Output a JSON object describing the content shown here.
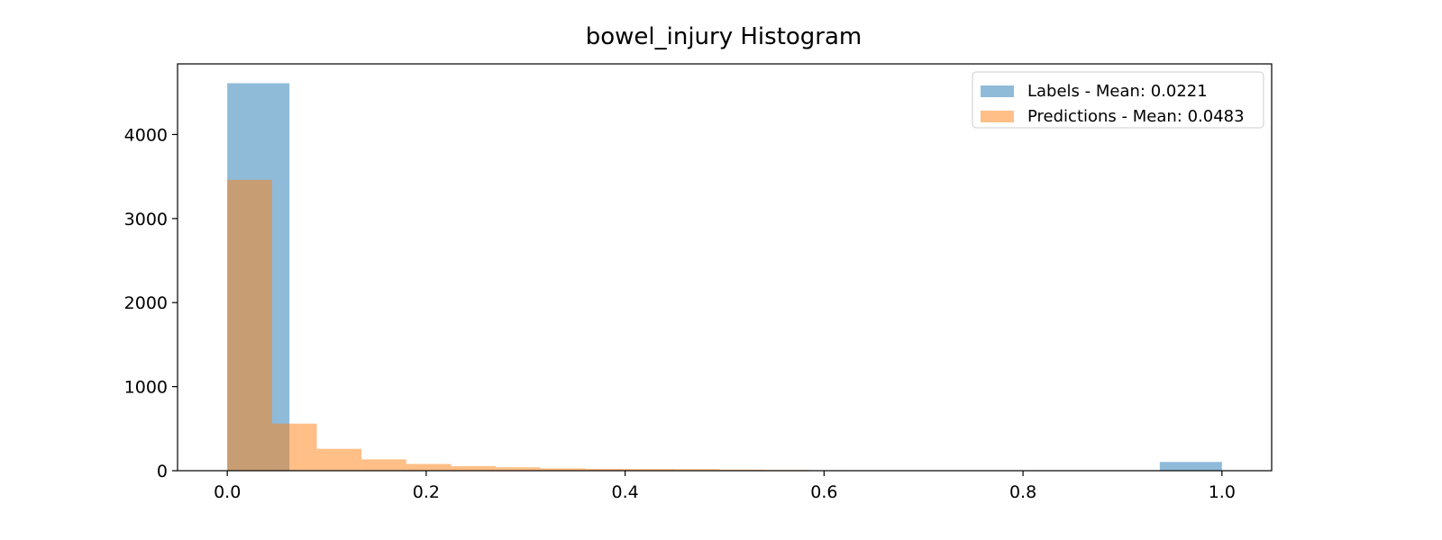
{
  "chart_data": {
    "type": "bar",
    "title": "bowel_injury Histogram",
    "xlabel": "",
    "ylabel": "",
    "xlim": [
      -0.05,
      1.05
    ],
    "ylim": [
      0,
      4840
    ],
    "x_ticks": [
      0.0,
      0.2,
      0.4,
      0.6,
      0.8,
      1.0
    ],
    "x_tick_labels": [
      "0.0",
      "0.2",
      "0.4",
      "0.6",
      "0.8",
      "1.0"
    ],
    "y_ticks": [
      0,
      1000,
      2000,
      3000,
      4000
    ],
    "y_tick_labels": [
      "0",
      "1000",
      "2000",
      "3000",
      "4000"
    ],
    "grid": false,
    "legend_position": "top-right",
    "series": [
      {
        "name": "Labels - Mean: 0.0221",
        "color": "#1f77b4",
        "opacity": 0.5,
        "bins": [
          {
            "x0": 0.0,
            "x1": 0.0625,
            "count": 4610
          },
          {
            "x0": 0.9375,
            "x1": 1.0,
            "count": 104
          }
        ]
      },
      {
        "name": "Predictions - Mean: 0.0483",
        "color": "#ff7f0e",
        "opacity": 0.5,
        "bins": [
          {
            "x0": 0.0,
            "x1": 0.045,
            "count": 3460
          },
          {
            "x0": 0.045,
            "x1": 0.09,
            "count": 560
          },
          {
            "x0": 0.09,
            "x1": 0.135,
            "count": 260
          },
          {
            "x0": 0.135,
            "x1": 0.18,
            "count": 135
          },
          {
            "x0": 0.18,
            "x1": 0.225,
            "count": 80
          },
          {
            "x0": 0.225,
            "x1": 0.27,
            "count": 55
          },
          {
            "x0": 0.27,
            "x1": 0.315,
            "count": 40
          },
          {
            "x0": 0.315,
            "x1": 0.36,
            "count": 28
          },
          {
            "x0": 0.36,
            "x1": 0.405,
            "count": 22
          },
          {
            "x0": 0.405,
            "x1": 0.45,
            "count": 20
          },
          {
            "x0": 0.45,
            "x1": 0.495,
            "count": 18
          },
          {
            "x0": 0.495,
            "x1": 0.54,
            "count": 12
          },
          {
            "x0": 0.54,
            "x1": 0.585,
            "count": 9
          },
          {
            "x0": 0.585,
            "x1": 0.63,
            "count": 6
          }
        ]
      }
    ]
  }
}
